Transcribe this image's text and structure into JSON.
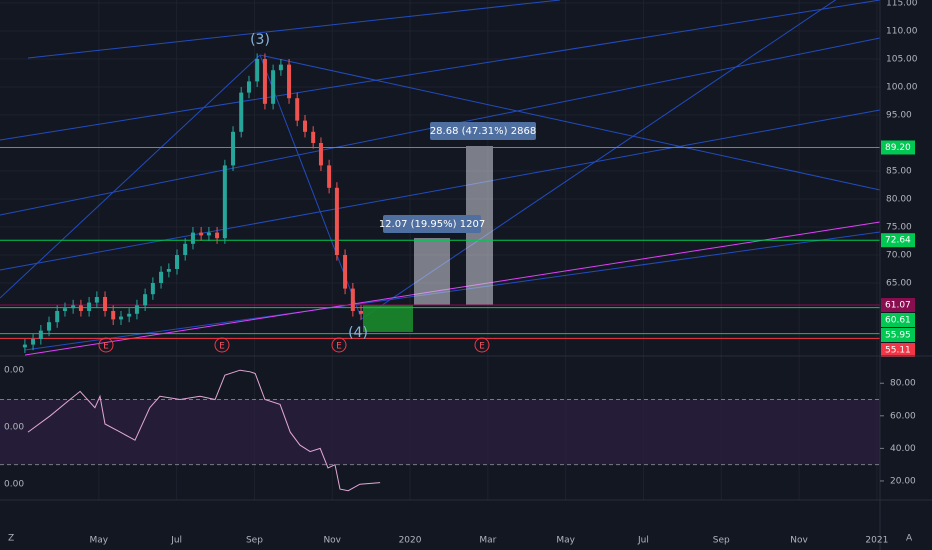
{
  "chart_data": {
    "type": "candlestick",
    "x": [
      2.1,
      2.31,
      2.51,
      2.72,
      2.93,
      3.13,
      3.34,
      3.54,
      3.75,
      3.95,
      4.16,
      4.37,
      4.57,
      4.78,
      4.98,
      5.19,
      5.39,
      5.6,
      5.8,
      6.01,
      6.22,
      6.42,
      6.63,
      6.83,
      7.04,
      7.24,
      7.45,
      7.66,
      7.86,
      8.07,
      8.27,
      8.48,
      8.68,
      8.89,
      9.1,
      9.3,
      9.51,
      9.71,
      9.92,
      10.12,
      10.33,
      10.53,
      10.74
    ],
    "open": [
      53.5,
      54,
      55,
      56.5,
      58,
      60,
      60.5,
      61,
      60,
      61.5,
      62.5,
      60,
      58.5,
      59,
      59.5,
      61,
      63,
      65,
      67,
      67.5,
      70,
      72,
      74,
      73.5,
      74,
      73,
      86,
      92,
      99,
      101,
      105,
      97,
      103,
      104,
      98,
      94,
      92,
      90,
      86,
      82,
      70,
      64,
      60
    ],
    "high": [
      55,
      56,
      57.5,
      59,
      61,
      61.5,
      62,
      62,
      62.5,
      63.5,
      63.5,
      61,
      60,
      60.5,
      62,
      64,
      66,
      68,
      68.5,
      71,
      73,
      75,
      75,
      75,
      75,
      87,
      93,
      100,
      102,
      106,
      106,
      104,
      105,
      105,
      99,
      95,
      93,
      91,
      87,
      83,
      71,
      65,
      61
    ],
    "low": [
      52.5,
      53,
      54,
      55.5,
      57,
      59,
      59.5,
      59,
      59,
      60.5,
      59,
      57.5,
      57.5,
      58,
      58.5,
      60,
      62,
      64,
      66,
      66.5,
      69,
      71,
      72.5,
      72.5,
      72,
      72,
      85,
      91,
      98,
      100,
      96,
      96,
      102,
      97,
      93,
      91,
      89,
      85,
      81,
      69,
      63,
      59,
      58.5
    ],
    "close": [
      54,
      55,
      56.5,
      58,
      60,
      60.5,
      61,
      60,
      61.5,
      62.5,
      60,
      58.5,
      59,
      59.5,
      61,
      63,
      65,
      67,
      67.5,
      70,
      72,
      74,
      73.5,
      74,
      73,
      86,
      92,
      99,
      101,
      105,
      97,
      103,
      104,
      98,
      94,
      92,
      90,
      86,
      82,
      70,
      64,
      60,
      59.5
    ],
    "up_color": "#26a69a",
    "down_color": "#ef5350",
    "xlim": [
      1.46,
      24.08
    ],
    "xticks": [
      {
        "value": 4,
        "label": "May"
      },
      {
        "value": 6,
        "label": "Jul"
      },
      {
        "value": 8,
        "label": "Sep"
      },
      {
        "value": 10,
        "label": "Nov"
      },
      {
        "value": 12,
        "label": "2020"
      },
      {
        "value": 14,
        "label": "Mar"
      },
      {
        "value": 16,
        "label": "May"
      },
      {
        "value": 18,
        "label": "Jul"
      },
      {
        "value": 20,
        "label": "Sep"
      },
      {
        "value": 22,
        "label": "Nov"
      },
      {
        "value": 24,
        "label": "2021"
      }
    ],
    "ylim": [
      52.14,
      115.54
    ],
    "yticks": [
      {
        "value": 115,
        "label": "115.00"
      },
      {
        "value": 110,
        "label": "110.00"
      },
      {
        "value": 105,
        "label": "105.00"
      },
      {
        "value": 100,
        "label": "100.00"
      },
      {
        "value": 95,
        "label": "95.00"
      },
      {
        "value": 85,
        "label": "85.00"
      },
      {
        "value": 80,
        "label": "80.00"
      },
      {
        "value": 75,
        "label": "75.00"
      },
      {
        "value": 70,
        "label": "70.00"
      },
      {
        "value": 65,
        "label": "65.00"
      }
    ],
    "levels": [
      {
        "value": 89.2,
        "label": "89.20",
        "color": "#00c853"
      },
      {
        "value": 72.64,
        "label": "72.64",
        "color": "#00c853"
      },
      {
        "value": 61.07,
        "label": "61.07",
        "color": "#880e4f"
      },
      {
        "value": 60.61,
        "label": "60.61",
        "color": "#00c853"
      },
      {
        "value": 55.95,
        "label": "55.95",
        "color": "#00c853"
      },
      {
        "value": 55.11,
        "label": "55.11",
        "color": "#f23645"
      }
    ],
    "annotations": {
      "wave3": "(3)",
      "wave4": "(4)",
      "measure1": "12.07 (19.95%) 1207",
      "measure2": "28.68 (47.31%) 2868",
      "earnings": [
        "E",
        "E",
        "E",
        "E"
      ]
    },
    "rsi": {
      "x": [
        2.18,
        2.75,
        3.26,
        3.52,
        3.9,
        4.03,
        4.16,
        4.55,
        4.93,
        5.31,
        5.57,
        6.09,
        6.6,
        6.99,
        7.24,
        7.63,
        7.89,
        8.02,
        8.27,
        8.66,
        8.92,
        9.17,
        9.43,
        9.69,
        9.89,
        10.07,
        10.2,
        10.41,
        10.71,
        11.23
      ],
      "values": [
        50,
        60,
        70,
        75,
        65,
        72,
        55,
        50,
        45,
        65,
        72,
        70,
        72,
        70,
        85,
        88,
        87,
        86,
        70,
        67,
        50,
        42,
        38,
        40,
        28,
        30,
        15,
        14,
        18,
        19
      ],
      "color": "#e3a7d8",
      "ylim": [
        8.3,
        95.5
      ],
      "yticks": [
        {
          "value": 80,
          "label": "80.00"
        },
        {
          "value": 60,
          "label": "60.00"
        },
        {
          "value": 40,
          "label": "40.00"
        },
        {
          "value": 20,
          "label": "20.00"
        }
      ],
      "bands": [
        70,
        30
      ],
      "left_labels": [
        "0.00",
        "0.00",
        "0.00"
      ]
    },
    "corner_labels": [
      "Z",
      "A"
    ]
  }
}
